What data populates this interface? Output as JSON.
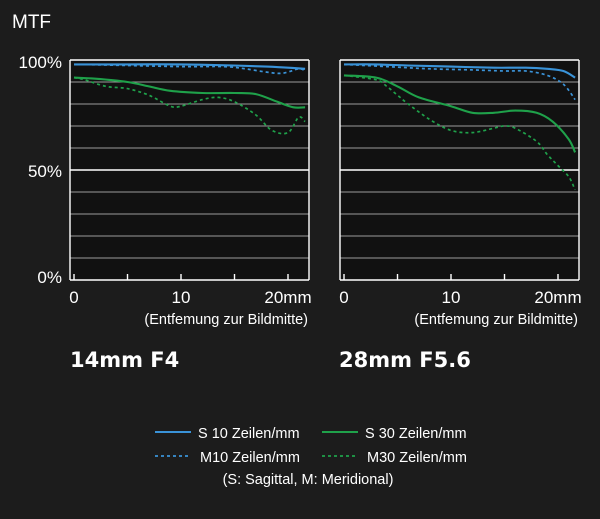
{
  "chart_data": {
    "y_axis_title": "MTF",
    "y_tick_labels": [
      "100%",
      "50%",
      "0%"
    ],
    "ylim": [
      0,
      100
    ],
    "grid": true,
    "legend_position": "bottom",
    "colors": {
      "s10": "#3a93d8",
      "m10": "#3a93d8",
      "s30": "#1fa14a",
      "m30": "#1fa14a",
      "grid_minor": "#9a9a9a",
      "grid_major": "#ffffff",
      "panel_bg": "#111111",
      "background": "#1c1c1c"
    },
    "legend": {
      "items": [
        {
          "key": "s10",
          "label": "S 10 Zeilen/mm",
          "style": "solid",
          "color": "#3a93d8"
        },
        {
          "key": "s30",
          "label": "S 30 Zeilen/mm",
          "style": "solid",
          "color": "#1fa14a"
        },
        {
          "key": "m10",
          "label": "M10 Zeilen/mm",
          "style": "dashed",
          "color": "#3a93d8"
        },
        {
          "key": "m30",
          "label": "M30 Zeilen/mm",
          "style": "dashed",
          "color": "#1fa14a"
        }
      ],
      "note": "(S: Sagittal, M: Meridional)"
    },
    "panels": [
      {
        "type": "line",
        "lens": "14mm F4",
        "xlabel": "(Entfemung zur Bildmitte)",
        "x_tick_labels": [
          "0",
          "10",
          "20mm"
        ],
        "xlim": [
          0,
          21.6
        ],
        "series": [
          {
            "key": "s10",
            "x": [
              0,
              5,
              10,
              15,
              18,
              20,
              21.6
            ],
            "y": [
              98,
              98,
              98,
              97.5,
              97,
              96.5,
              96
            ]
          },
          {
            "key": "m10",
            "x": [
              0,
              5,
              10,
              14,
              16,
              18,
              19.5,
              21,
              21.6
            ],
            "y": [
              98,
              97.5,
              97,
              97,
              96,
              94.5,
              94,
              96,
              95
            ]
          },
          {
            "key": "s30",
            "x": [
              0,
              2,
              5,
              7,
              9,
              12,
              15,
              17,
              19,
              20.5,
              21.6
            ],
            "y": [
              92,
              91.5,
              90,
              88,
              86,
              85,
              85,
              84.5,
              81,
              78.5,
              78.5
            ]
          },
          {
            "key": "m30",
            "x": [
              0,
              1,
              3,
              5,
              7,
              9,
              10,
              12,
              13.5,
              15,
              17,
              18.5,
              20,
              21,
              21.6
            ],
            "y": [
              92,
              91,
              88,
              87,
              84,
              79,
              79,
              82,
              83,
              81,
              75,
              68,
              67,
              74,
              72
            ]
          }
        ]
      },
      {
        "type": "line",
        "lens": "28mm F5.6",
        "xlabel": "(Entfemung zur Bildmitte)",
        "x_tick_labels": [
          "0",
          "10",
          "20mm"
        ],
        "xlim": [
          0,
          21.6
        ],
        "series": [
          {
            "key": "s10",
            "x": [
              0,
              3,
              6,
              10,
              14,
              17,
              19,
              20.5,
              21.6
            ],
            "y": [
              98,
              98,
              97.5,
              97,
              96.5,
              96.5,
              96,
              95,
              92
            ]
          },
          {
            "key": "m10",
            "x": [
              0,
              4,
              8,
              12,
              15,
              17,
              19,
              20.5,
              21.6
            ],
            "y": [
              98,
              97,
              96,
              95.5,
              95,
              95,
              93,
              89,
              82
            ]
          },
          {
            "key": "s30",
            "x": [
              0,
              3,
              5,
              7,
              10,
              12,
              14,
              16,
              18,
              19.5,
              21,
              21.6
            ],
            "y": [
              93,
              92,
              88,
              83,
              79,
              76,
              76,
              77,
              76,
              72,
              64,
              58
            ]
          },
          {
            "key": "m30",
            "x": [
              0,
              3,
              4,
              5,
              6,
              8,
              10,
              12,
              14,
              15,
              16,
              18,
              19,
              20,
              21,
              21.6
            ],
            "y": [
              93,
              91,
              88,
              84,
              80,
              73,
              68,
              67,
              69,
              70,
              69,
              63,
              57,
              52,
              47,
              41
            ]
          }
        ]
      }
    ]
  }
}
